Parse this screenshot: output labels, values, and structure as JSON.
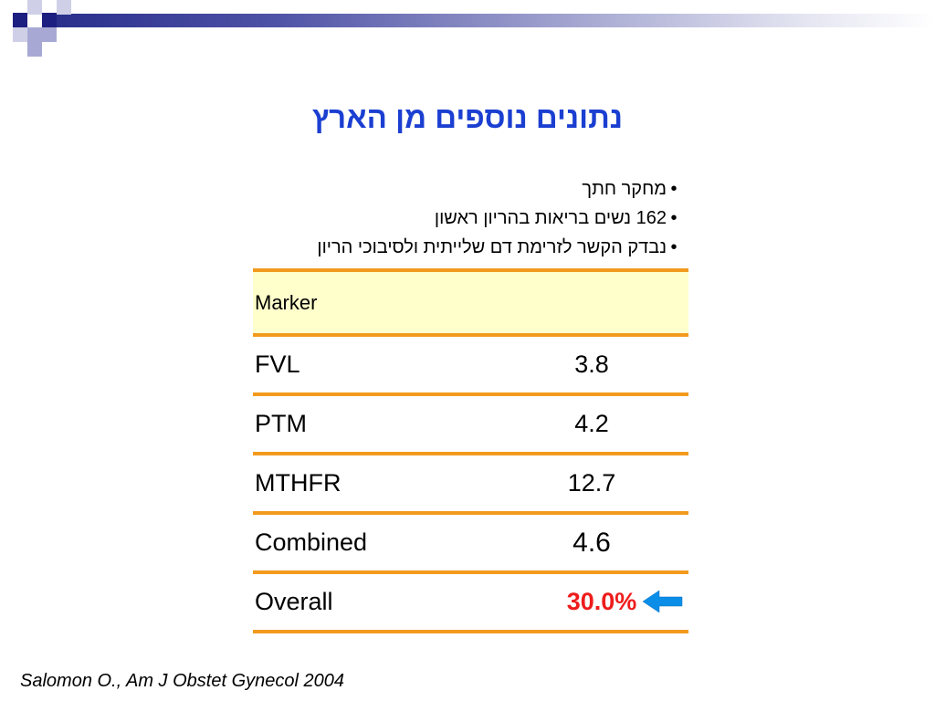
{
  "title": "נתונים נוספים מן הארץ",
  "bullets": [
    "מחקר חתך",
    "162 נשים בריאות בהריון ראשון",
    "נבדק הקשר לזרימת דם שלייתית ולסיבוכי הריון"
  ],
  "table": {
    "header": "Marker",
    "rows": [
      {
        "name": "FVL",
        "value": "3.8"
      },
      {
        "name": "PTM",
        "value": "4.2"
      },
      {
        "name": "MTHFR",
        "value": "12.7"
      },
      {
        "name": "Combined",
        "value": "4.6"
      },
      {
        "name": "Overall",
        "value": "30.0%"
      }
    ]
  },
  "citation": "Salomon O., Am J Obstet Gynecol 2004",
  "colors": {
    "title": "#1b3fd1",
    "table_rule": "#f29a1e",
    "header_fill": "#ffffcc",
    "highlight_value": "#ee1c1c",
    "arrow": "#0a8ee8",
    "band_dark": "#1d1f80"
  },
  "icons": {
    "arrow": "left-arrow-icon"
  }
}
